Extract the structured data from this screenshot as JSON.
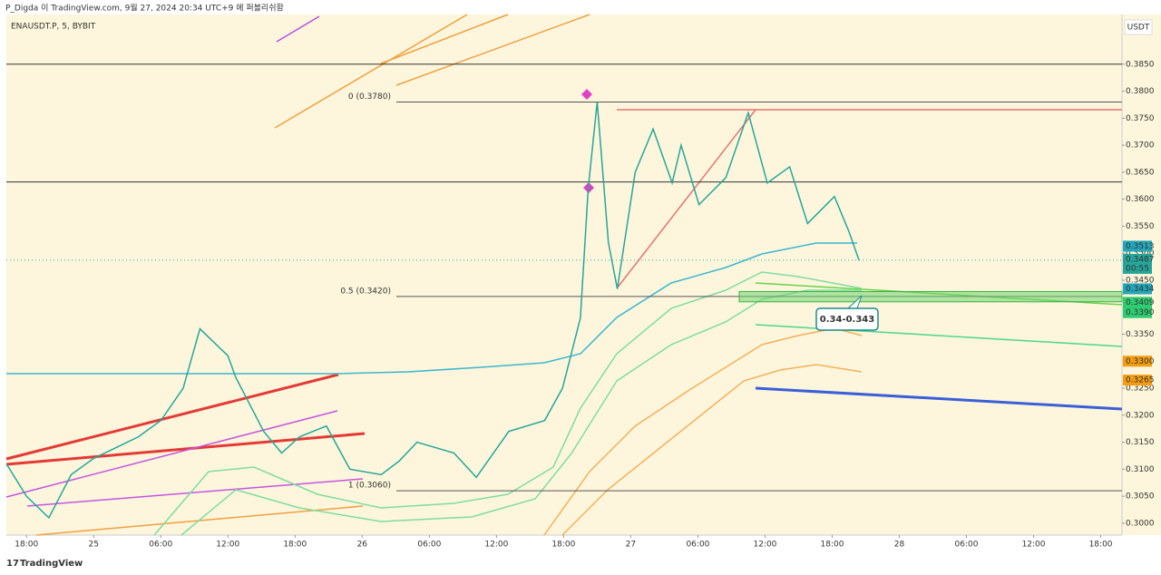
{
  "header": {
    "publisher": "P_Digda 이 TradingView.com, 9월 27, 2024 20:34 UTC+9 에 퍼블리쉬함",
    "brand": "TradingView"
  },
  "chart_data": {
    "type": "line",
    "title": "ENAUSDT.P, 5, BYBIT",
    "y_axis_label": "USDT",
    "x": [
      -1.8,
      0,
      2,
      4,
      6,
      8,
      10,
      12,
      14,
      15.5,
      18,
      18.7,
      21.2,
      22.8,
      24.4,
      26.8,
      28.9,
      31.7,
      33.3,
      34.9,
      38.2,
      40.2,
      43.1,
      46.3,
      47.9,
      49.5,
      50.2,
      51,
      52,
      52.8,
      54.4,
      56,
      57.7,
      58.5,
      60.1,
      62.5,
      64.5,
      66.2,
      68.2,
      69.8,
      72.2,
      73.5,
      74.4
    ],
    "series": [
      {
        "color": "#26a69a",
        "values": [
          0.311,
          0.305,
          0.301,
          0.309,
          0.312,
          0.314,
          0.316,
          0.319,
          0.325,
          0.336,
          0.331,
          0.327,
          0.317,
          0.313,
          0.316,
          0.318,
          0.31,
          0.309,
          0.3115,
          0.315,
          0.313,
          0.3085,
          0.317,
          0.319,
          0.325,
          0.338,
          0.362,
          0.378,
          0.352,
          0.3434,
          0.365,
          0.373,
          0.363,
          0.37,
          0.359,
          0.364,
          0.376,
          0.363,
          0.366,
          0.3555,
          0.3605,
          0.354,
          0.3487
        ]
      }
    ],
    "xlim": [
      -1.8,
      97.9
    ],
    "xticks": [
      {
        "value": 0,
        "label": "18:00"
      },
      {
        "value": 6,
        "label": "25"
      },
      {
        "value": 12,
        "label": "06:00"
      },
      {
        "value": 18,
        "label": "12:00"
      },
      {
        "value": 24,
        "label": "18:00"
      },
      {
        "value": 30,
        "label": "26"
      },
      {
        "value": 36,
        "label": "06:00"
      },
      {
        "value": 42,
        "label": "12:00"
      },
      {
        "value": 48,
        "label": "18:00"
      },
      {
        "value": 54,
        "label": "27"
      },
      {
        "value": 60,
        "label": "06:00"
      },
      {
        "value": 66,
        "label": "12:00"
      },
      {
        "value": 72,
        "label": "18:00"
      },
      {
        "value": 78,
        "label": "28"
      },
      {
        "value": 84,
        "label": "06:00"
      },
      {
        "value": 90,
        "label": "12:00"
      },
      {
        "value": 96,
        "label": "18:00"
      }
    ],
    "ylim": [
      0.2978,
      0.3942
    ],
    "yticks": [
      {
        "value": 0.385,
        "label": "0.3850"
      },
      {
        "value": 0.38,
        "label": "0.3800"
      },
      {
        "value": 0.375,
        "label": "0.3750"
      },
      {
        "value": 0.37,
        "label": "0.3700"
      },
      {
        "value": 0.365,
        "label": "0.3650"
      },
      {
        "value": 0.36,
        "label": "0.3600"
      },
      {
        "value": 0.355,
        "label": "0.3550"
      },
      {
        "value": 0.35,
        "label": "0.3500"
      },
      {
        "value": 0.345,
        "label": "0.3450"
      },
      {
        "value": 0.335,
        "label": "0.3350"
      },
      {
        "value": 0.325,
        "label": "0.3250"
      },
      {
        "value": 0.32,
        "label": "0.3200"
      },
      {
        "value": 0.315,
        "label": "0.3150"
      },
      {
        "value": 0.31,
        "label": "0.3100"
      },
      {
        "value": 0.305,
        "label": "0.3050"
      },
      {
        "value": 0.3,
        "label": "0.3000"
      }
    ],
    "hlines": [
      0.385,
      0.3632
    ],
    "fib_levels": [
      {
        "label": "0 (0.3780)",
        "value": 0.378
      },
      {
        "label": "0.5 (0.3420)",
        "value": 0.342
      },
      {
        "label": "1 (0.3060)",
        "value": 0.306
      }
    ],
    "price_labels": [
      {
        "value": 0.3513,
        "label": "0.3513",
        "color": "#22a6b8"
      },
      {
        "value": 0.3487,
        "label": "0.3487",
        "color": "#26a69a",
        "countdown": "00:55"
      },
      {
        "value": 0.3434,
        "label": "0.3434",
        "color": "#22a6b8"
      },
      {
        "value": 0.3409,
        "label": "0.3409",
        "color": "#2ecc71"
      },
      {
        "value": 0.339,
        "label": "0.3390",
        "color": "#2ecc71"
      },
      {
        "value": 0.33,
        "label": "0.3300",
        "color": "#f39c12"
      },
      {
        "value": 0.3265,
        "label": "0.3265",
        "color": "#f39c12"
      }
    ],
    "zone": {
      "low": 0.341,
      "high": 0.3429,
      "annotation": "0.34-0.343"
    }
  }
}
